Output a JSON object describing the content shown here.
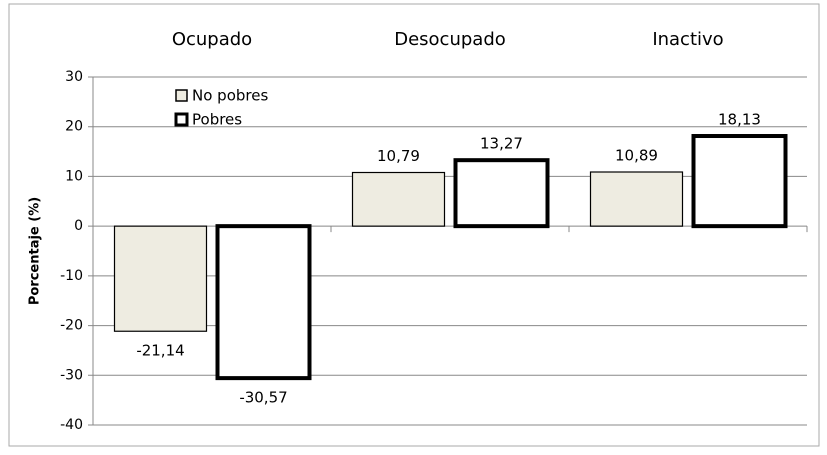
{
  "chart_data": {
    "type": "bar",
    "categories": [
      "Ocupado",
      "Desocupado",
      "Inactivo"
    ],
    "y_label": "Porcentaje (%)",
    "series": [
      {
        "name": "No pobres",
        "color": "#eeece1",
        "values": [
          -21.14,
          10.79,
          10.89
        ],
        "value_labels": [
          "-21,14",
          "10,79",
          "10,89"
        ]
      },
      {
        "name": "Pobres",
        "color": "#ffffff",
        "values": [
          -30.57,
          13.27,
          18.13
        ],
        "value_labels": [
          "-30,57",
          "13,27",
          "18,13"
        ]
      }
    ],
    "ylim": [
      -40,
      30
    ],
    "yticks": [
      -40,
      -30,
      -20,
      -10,
      0,
      10,
      20,
      30
    ],
    "grid": true,
    "legend": "upper left"
  }
}
